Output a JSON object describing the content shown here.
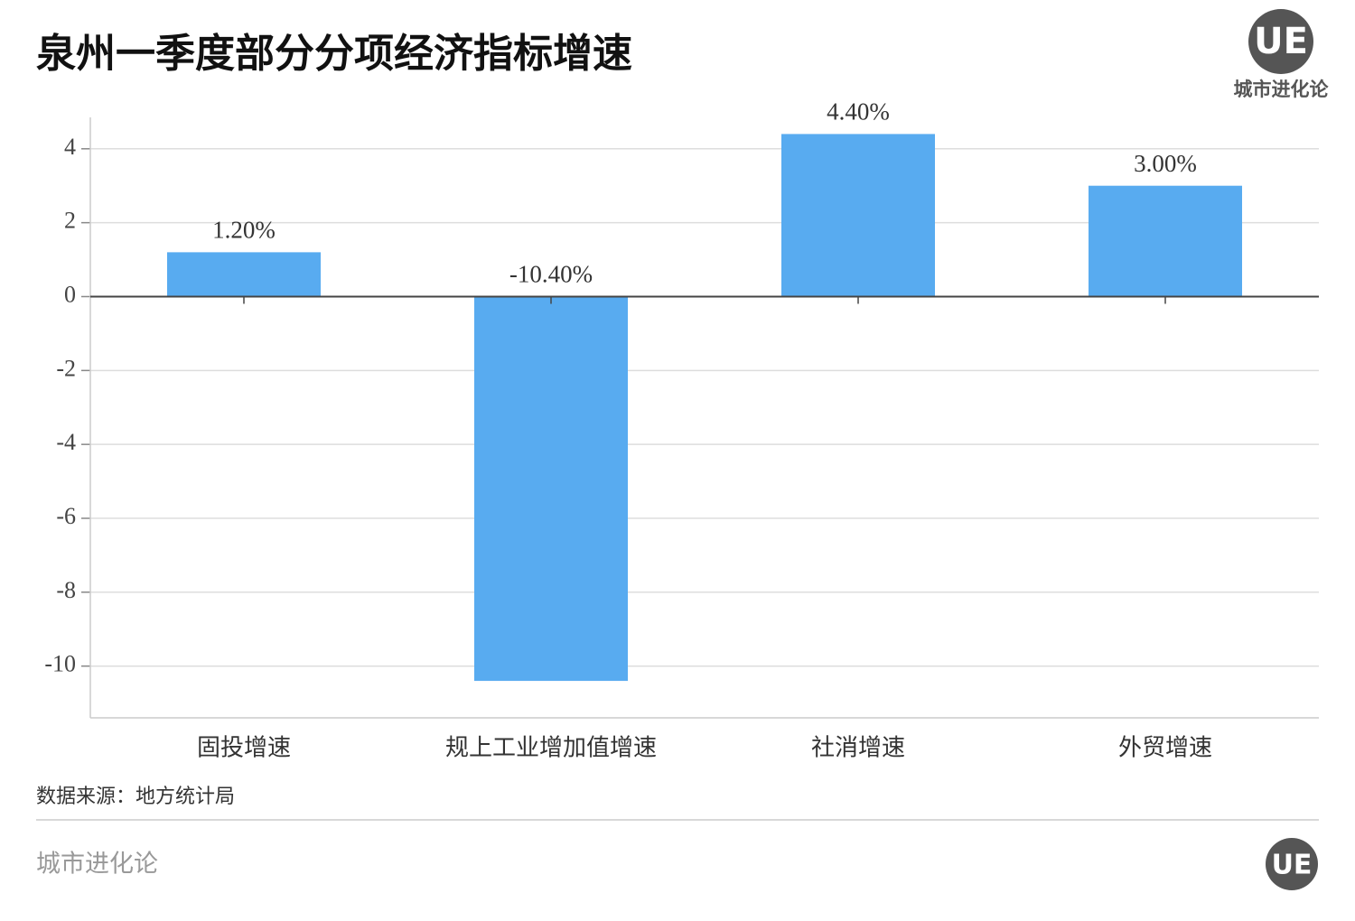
{
  "chart_data": {
    "type": "bar",
    "title": "泉州一季度部分分项经济指标增速",
    "categories": [
      "固投增速",
      "规上工业增加值增速",
      "社消增速",
      "外贸增速"
    ],
    "values": [
      1.2,
      -10.4,
      4.4,
      3.0
    ],
    "value_labels": [
      "1.20%",
      "-10.40%",
      "4.40%",
      "3.00%"
    ],
    "color": "#58abf0",
    "ylim": [
      -11.4,
      4.85
    ],
    "yticks": [
      -10,
      -8,
      -6,
      -4,
      -2,
      0,
      2,
      4
    ],
    "grid": true,
    "source": "数据来源：地方统计局"
  },
  "branding": {
    "logo": "UE",
    "name": "城市进化论",
    "footer": "城市进化论"
  }
}
